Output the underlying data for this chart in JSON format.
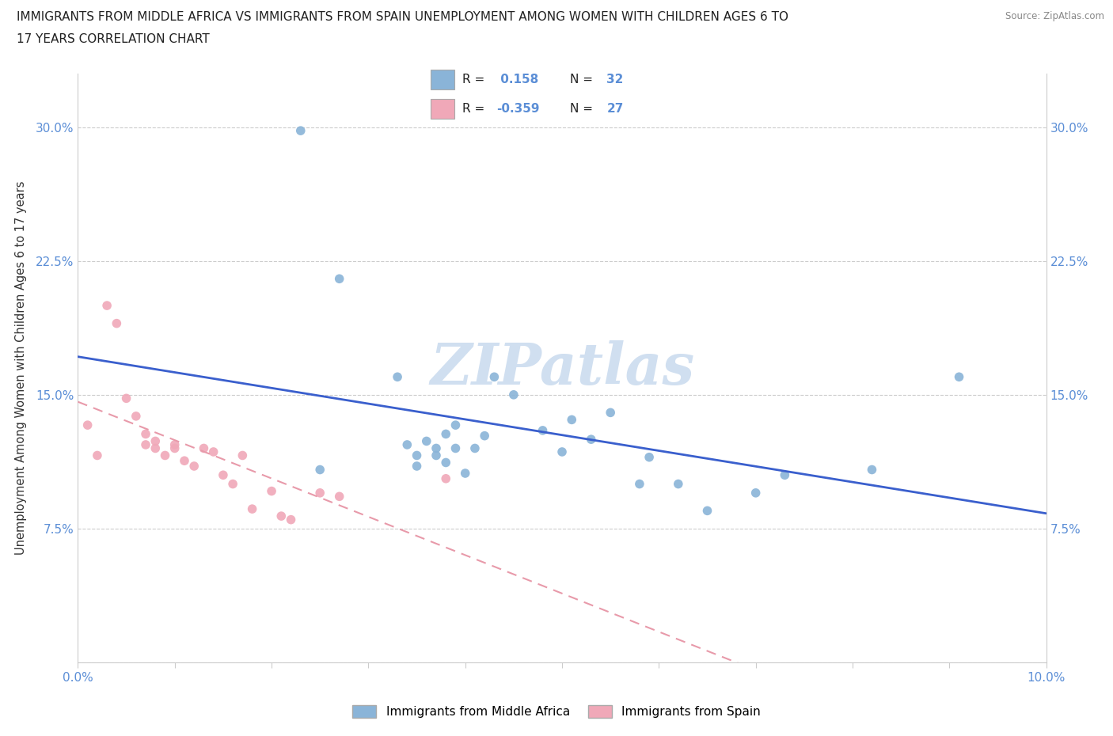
{
  "title_line1": "IMMIGRANTS FROM MIDDLE AFRICA VS IMMIGRANTS FROM SPAIN UNEMPLOYMENT AMONG WOMEN WITH CHILDREN AGES 6 TO",
  "title_line2": "17 YEARS CORRELATION CHART",
  "source": "Source: ZipAtlas.com",
  "ylabel": "Unemployment Among Women with Children Ages 6 to 17 years",
  "xlim": [
    0.0,
    0.1
  ],
  "ylim": [
    0.0,
    0.33
  ],
  "yticks": [
    0.0,
    0.075,
    0.15,
    0.225,
    0.3
  ],
  "ytick_labels_left": [
    "",
    "7.5%",
    "15.0%",
    "22.5%",
    "30.0%"
  ],
  "ytick_labels_right": [
    "",
    "7.5%",
    "15.0%",
    "22.5%",
    "30.0%"
  ],
  "xtick_vals": [
    0.0,
    0.01,
    0.02,
    0.03,
    0.04,
    0.05,
    0.06,
    0.07,
    0.08,
    0.09,
    0.1
  ],
  "xtick_labels": [
    "0.0%",
    "",
    "",
    "",
    "",
    "",
    "",
    "",
    "",
    "",
    "10.0%"
  ],
  "blue_scatter_x": [
    0.023,
    0.027,
    0.033,
    0.034,
    0.035,
    0.035,
    0.036,
    0.037,
    0.037,
    0.038,
    0.038,
    0.039,
    0.039,
    0.04,
    0.041,
    0.042,
    0.043,
    0.045,
    0.048,
    0.05,
    0.051,
    0.053,
    0.055,
    0.058,
    0.059,
    0.062,
    0.065,
    0.07,
    0.073,
    0.082,
    0.091,
    0.025
  ],
  "blue_scatter_y": [
    0.298,
    0.215,
    0.16,
    0.122,
    0.116,
    0.11,
    0.124,
    0.12,
    0.116,
    0.128,
    0.112,
    0.133,
    0.12,
    0.106,
    0.12,
    0.127,
    0.16,
    0.15,
    0.13,
    0.118,
    0.136,
    0.125,
    0.14,
    0.1,
    0.115,
    0.1,
    0.085,
    0.095,
    0.105,
    0.108,
    0.16,
    0.108
  ],
  "pink_scatter_x": [
    0.001,
    0.002,
    0.003,
    0.004,
    0.005,
    0.006,
    0.007,
    0.007,
    0.008,
    0.008,
    0.009,
    0.01,
    0.01,
    0.011,
    0.012,
    0.013,
    0.014,
    0.015,
    0.016,
    0.017,
    0.018,
    0.02,
    0.021,
    0.022,
    0.025,
    0.027,
    0.038
  ],
  "pink_scatter_y": [
    0.133,
    0.116,
    0.2,
    0.19,
    0.148,
    0.138,
    0.128,
    0.122,
    0.12,
    0.124,
    0.116,
    0.122,
    0.12,
    0.113,
    0.11,
    0.12,
    0.118,
    0.105,
    0.1,
    0.116,
    0.086,
    0.096,
    0.082,
    0.08,
    0.095,
    0.093,
    0.103
  ],
  "blue_R": 0.158,
  "blue_N": 32,
  "pink_R": -0.359,
  "pink_N": 27,
  "blue_scatter_color": "#8ab4d8",
  "pink_scatter_color": "#f0a8b8",
  "blue_line_color": "#3a5fcd",
  "pink_line_color": "#e89aaa",
  "watermark_text": "ZIPatlas",
  "watermark_color": "#d0dff0",
  "legend_label_blue": "Immigrants from Middle Africa",
  "legend_label_pink": "Immigrants from Spain",
  "axis_color": "#cccccc",
  "tick_label_color": "#5b8ed6",
  "title_color": "#222222",
  "ylabel_color": "#333333",
  "source_color": "#888888"
}
